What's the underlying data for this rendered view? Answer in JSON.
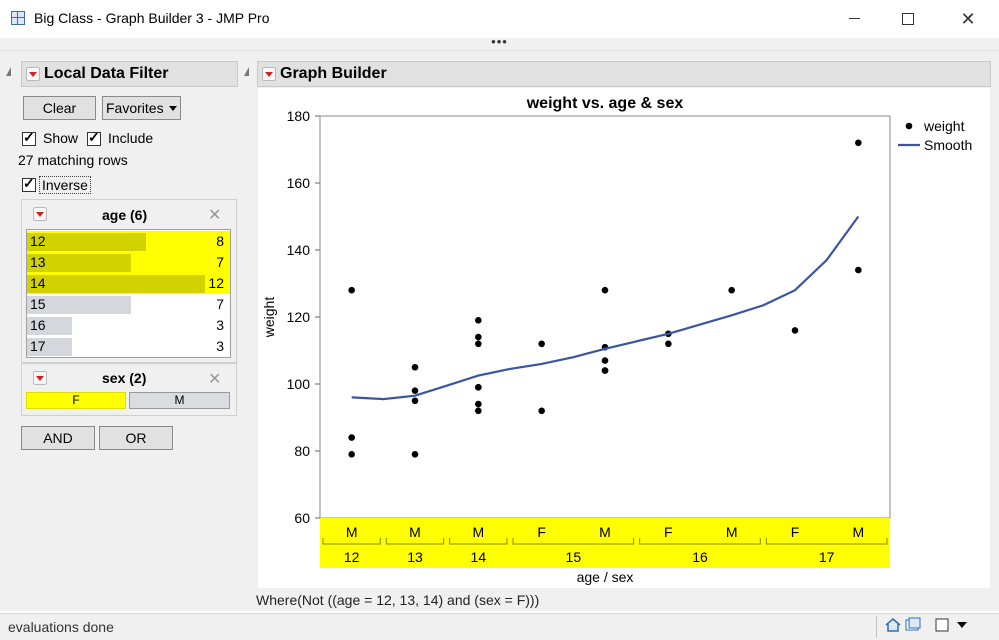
{
  "window": {
    "title": "Big Class - Graph Builder 3 - JMP Pro",
    "menu_dots": "•••"
  },
  "filter": {
    "header": "Local Data Filter",
    "clear_label": "Clear",
    "favorites_label": "Favorites",
    "show_label": "Show",
    "include_label": "Include",
    "matching_rows": "27 matching rows",
    "inverse_label": "Inverse",
    "age_title": "age (6)",
    "age_items": [
      {
        "label": "12",
        "count": "8",
        "value": 8,
        "selected": true
      },
      {
        "label": "13",
        "count": "7",
        "value": 7,
        "selected": true
      },
      {
        "label": "14",
        "count": "12",
        "value": 12,
        "selected": true
      },
      {
        "label": "15",
        "count": "7",
        "value": 7,
        "selected": false
      },
      {
        "label": "16",
        "count": "3",
        "value": 3,
        "selected": false
      },
      {
        "label": "17",
        "count": "3",
        "value": 3,
        "selected": false
      }
    ],
    "sex_title": "sex (2)",
    "sex_f": "F",
    "sex_m": "M",
    "and_label": "AND",
    "or_label": "OR"
  },
  "graph": {
    "header": "Graph Builder",
    "where_text": "Where(Not ((age = 12, 13, 14) and (sex = F)))"
  },
  "status": {
    "text": "evaluations done"
  },
  "colors": {
    "selected": "#ffff00",
    "selected_bar": "#d2d200",
    "smooth": "#3a56a3",
    "close_hover": "#e81123"
  },
  "chart_data": {
    "type": "scatter",
    "title": "weight vs. age & sex",
    "xlabel": "age / sex",
    "ylabel": "weight",
    "ylim": [
      60,
      180
    ],
    "yticks": [
      60,
      80,
      100,
      120,
      140,
      160,
      180
    ],
    "categories": [
      {
        "sex": "M",
        "age": "12"
      },
      {
        "sex": "M",
        "age": "13"
      },
      {
        "sex": "M",
        "age": "14"
      },
      {
        "sex": "F",
        "age": "15"
      },
      {
        "sex": "M",
        "age": "15"
      },
      {
        "sex": "F",
        "age": "16"
      },
      {
        "sex": "M",
        "age": "16"
      },
      {
        "sex": "F",
        "age": "17"
      },
      {
        "sex": "M",
        "age": "17"
      }
    ],
    "age_groups": [
      {
        "label": "12",
        "span": [
          0,
          0
        ]
      },
      {
        "label": "13",
        "span": [
          1,
          1
        ]
      },
      {
        "label": "14",
        "span": [
          2,
          2
        ]
      },
      {
        "label": "15",
        "span": [
          3,
          4
        ]
      },
      {
        "label": "16",
        "span": [
          5,
          6
        ]
      },
      {
        "label": "17",
        "span": [
          7,
          8
        ]
      }
    ],
    "series": [
      {
        "name": "weight",
        "kind": "points",
        "points": [
          [
            0,
            128
          ],
          [
            0,
            84
          ],
          [
            0,
            79
          ],
          [
            1,
            105
          ],
          [
            1,
            98
          ],
          [
            1,
            95
          ],
          [
            1,
            79
          ],
          [
            2,
            119
          ],
          [
            2,
            114
          ],
          [
            2,
            112
          ],
          [
            2,
            99
          ],
          [
            2,
            99
          ],
          [
            2,
            94
          ],
          [
            2,
            92
          ],
          [
            3,
            112
          ],
          [
            3,
            92
          ],
          [
            4,
            128
          ],
          [
            4,
            111
          ],
          [
            4,
            107
          ],
          [
            4,
            104
          ],
          [
            4,
            104
          ],
          [
            5,
            115
          ],
          [
            5,
            112
          ],
          [
            6,
            128
          ],
          [
            7,
            116
          ],
          [
            8,
            172
          ],
          [
            8,
            134
          ]
        ]
      },
      {
        "name": "Smooth",
        "kind": "line",
        "points": [
          [
            0,
            96
          ],
          [
            0.5,
            95.5
          ],
          [
            1,
            96.5
          ],
          [
            1.5,
            99.5
          ],
          [
            2,
            102.5
          ],
          [
            2.5,
            104.5
          ],
          [
            3,
            106
          ],
          [
            3.5,
            108
          ],
          [
            4,
            110.5
          ],
          [
            5,
            115
          ],
          [
            6,
            120.5
          ],
          [
            6.5,
            123.5
          ],
          [
            7,
            128
          ],
          [
            7.5,
            137
          ],
          [
            8,
            150
          ]
        ]
      }
    ],
    "legend_position": "top-right",
    "grid": false
  }
}
